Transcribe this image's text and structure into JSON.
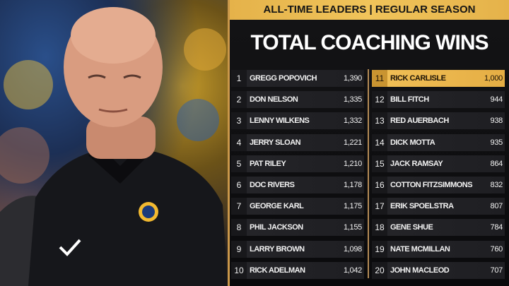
{
  "header": {
    "subtitle": "ALL-TIME LEADERS | REGULAR SEASON",
    "title": "TOTAL COACHING WINS"
  },
  "colors": {
    "gold": "#f0be55",
    "background": "#0b0b0d",
    "divider": "#b38a55"
  },
  "leaders": [
    {
      "rank": "1",
      "name": "GREGG POPOVICH",
      "wins": "1,390"
    },
    {
      "rank": "2",
      "name": "DON NELSON",
      "wins": "1,335"
    },
    {
      "rank": "3",
      "name": "LENNY WILKENS",
      "wins": "1,332"
    },
    {
      "rank": "4",
      "name": "JERRY SLOAN",
      "wins": "1,221"
    },
    {
      "rank": "5",
      "name": "PAT RILEY",
      "wins": "1,210"
    },
    {
      "rank": "6",
      "name": "DOC RIVERS",
      "wins": "1,178"
    },
    {
      "rank": "7",
      "name": "GEORGE KARL",
      "wins": "1,175"
    },
    {
      "rank": "8",
      "name": "PHIL JACKSON",
      "wins": "1,155"
    },
    {
      "rank": "9",
      "name": "LARRY BROWN",
      "wins": "1,098"
    },
    {
      "rank": "10",
      "name": "RICK ADELMAN",
      "wins": "1,042"
    },
    {
      "rank": "11",
      "name": "RICK CARLISLE",
      "wins": "1,000",
      "highlight": true
    },
    {
      "rank": "12",
      "name": "BILL FITCH",
      "wins": "944"
    },
    {
      "rank": "13",
      "name": "RED AUERBACH",
      "wins": "938"
    },
    {
      "rank": "14",
      "name": "DICK MOTTA",
      "wins": "935"
    },
    {
      "rank": "15",
      "name": "JACK RAMSAY",
      "wins": "864"
    },
    {
      "rank": "16",
      "name": "COTTON FITZSIMMONS",
      "wins": "832"
    },
    {
      "rank": "17",
      "name": "ERIK SPOELSTRA",
      "wins": "807"
    },
    {
      "rank": "18",
      "name": "GENE SHUE",
      "wins": "784"
    },
    {
      "rank": "19",
      "name": "NATE MCMILLAN",
      "wins": "760"
    },
    {
      "rank": "20",
      "name": "JOHN MACLEOD",
      "wins": "707"
    }
  ]
}
